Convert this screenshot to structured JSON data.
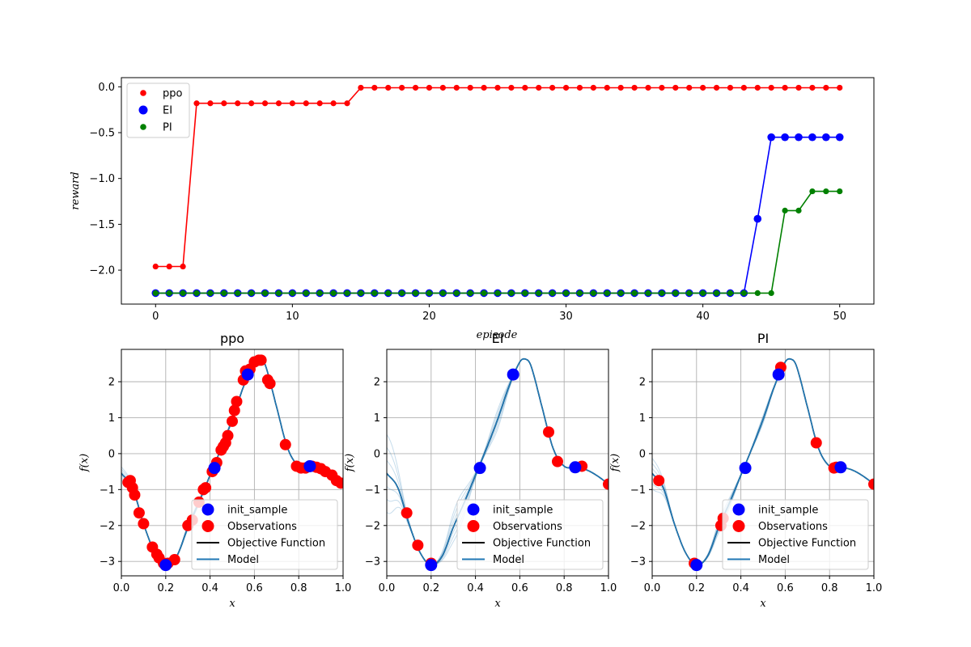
{
  "chart_data": [
    {
      "type": "line",
      "title": "",
      "xlabel": "episode",
      "ylabel": "reward",
      "xlim": [
        -2.5,
        52.5
      ],
      "ylim": [
        -2.37,
        0.1
      ],
      "xticks": [
        0,
        10,
        20,
        30,
        40,
        50
      ],
      "yticks": [
        0.0,
        -0.5,
        -1.0,
        -1.5,
        -2.0
      ],
      "ytick_labels": [
        "0.0",
        "−0.5",
        "−1.0",
        "−1.5",
        "−2.0"
      ],
      "grid": false,
      "legend_position": "upper-left",
      "series": [
        {
          "name": "ppo",
          "color": "#ff0000",
          "marker_size": "small",
          "x": [
            0,
            1,
            2,
            3,
            4,
            5,
            6,
            7,
            8,
            9,
            10,
            11,
            12,
            13,
            14,
            15,
            16,
            17,
            18,
            19,
            20,
            21,
            22,
            23,
            24,
            25,
            26,
            27,
            28,
            29,
            30,
            31,
            32,
            33,
            34,
            35,
            36,
            37,
            38,
            39,
            40,
            41,
            42,
            43,
            44,
            45,
            46,
            47,
            48,
            49,
            50
          ],
          "values": [
            -1.96,
            -1.96,
            -1.96,
            -0.18,
            -0.18,
            -0.18,
            -0.18,
            -0.18,
            -0.18,
            -0.18,
            -0.18,
            -0.18,
            -0.18,
            -0.18,
            -0.18,
            -0.01,
            -0.01,
            -0.01,
            -0.01,
            -0.01,
            -0.01,
            -0.01,
            -0.01,
            -0.01,
            -0.01,
            -0.01,
            -0.01,
            -0.01,
            -0.01,
            -0.01,
            -0.01,
            -0.01,
            -0.01,
            -0.01,
            -0.01,
            -0.01,
            -0.01,
            -0.01,
            -0.01,
            -0.01,
            -0.01,
            -0.01,
            -0.01,
            -0.01,
            -0.01,
            -0.01,
            -0.01,
            -0.01,
            -0.01,
            -0.01,
            -0.01
          ]
        },
        {
          "name": "EI",
          "color": "#0000ff",
          "marker_size": "large",
          "x": [
            0,
            1,
            2,
            3,
            4,
            5,
            6,
            7,
            8,
            9,
            10,
            11,
            12,
            13,
            14,
            15,
            16,
            17,
            18,
            19,
            20,
            21,
            22,
            23,
            24,
            25,
            26,
            27,
            28,
            29,
            30,
            31,
            32,
            33,
            34,
            35,
            36,
            37,
            38,
            39,
            40,
            41,
            42,
            43,
            44,
            45,
            46,
            47,
            48,
            49,
            50
          ],
          "values": [
            -2.25,
            -2.25,
            -2.25,
            -2.25,
            -2.25,
            -2.25,
            -2.25,
            -2.25,
            -2.25,
            -2.25,
            -2.25,
            -2.25,
            -2.25,
            -2.25,
            -2.25,
            -2.25,
            -2.25,
            -2.25,
            -2.25,
            -2.25,
            -2.25,
            -2.25,
            -2.25,
            -2.25,
            -2.25,
            -2.25,
            -2.25,
            -2.25,
            -2.25,
            -2.25,
            -2.25,
            -2.25,
            -2.25,
            -2.25,
            -2.25,
            -2.25,
            -2.25,
            -2.25,
            -2.25,
            -2.25,
            -2.25,
            -2.25,
            -2.25,
            -2.25,
            -1.44,
            -0.55,
            -0.55,
            -0.55,
            -0.55,
            -0.55,
            -0.55
          ]
        },
        {
          "name": "PI",
          "color": "#008000",
          "marker_size": "small",
          "x": [
            0,
            1,
            2,
            3,
            4,
            5,
            6,
            7,
            8,
            9,
            10,
            11,
            12,
            13,
            14,
            15,
            16,
            17,
            18,
            19,
            20,
            21,
            22,
            23,
            24,
            25,
            26,
            27,
            28,
            29,
            30,
            31,
            32,
            33,
            34,
            35,
            36,
            37,
            38,
            39,
            40,
            41,
            42,
            43,
            44,
            45,
            46,
            47,
            48,
            49,
            50
          ],
          "values": [
            -2.25,
            -2.25,
            -2.25,
            -2.25,
            -2.25,
            -2.25,
            -2.25,
            -2.25,
            -2.25,
            -2.25,
            -2.25,
            -2.25,
            -2.25,
            -2.25,
            -2.25,
            -2.25,
            -2.25,
            -2.25,
            -2.25,
            -2.25,
            -2.25,
            -2.25,
            -2.25,
            -2.25,
            -2.25,
            -2.25,
            -2.25,
            -2.25,
            -2.25,
            -2.25,
            -2.25,
            -2.25,
            -2.25,
            -2.25,
            -2.25,
            -2.25,
            -2.25,
            -2.25,
            -2.25,
            -2.25,
            -2.25,
            -2.25,
            -2.25,
            -2.25,
            -2.25,
            -2.25,
            -1.35,
            -1.35,
            -1.14,
            -1.14,
            -1.14
          ]
        }
      ]
    },
    {
      "type": "line",
      "title": "ppo",
      "xlabel": "x",
      "ylabel": "f(x)",
      "xlim": [
        0,
        1
      ],
      "ylim": [
        -3.4,
        2.9
      ],
      "xticks": [
        0.0,
        0.2,
        0.4,
        0.6,
        0.8,
        1.0
      ],
      "xtick_labels": [
        "0.0",
        "0.2",
        "0.4",
        "0.6",
        "0.8",
        "1.0"
      ],
      "yticks": [
        2,
        1,
        0,
        -1,
        -2,
        -3
      ],
      "ytick_labels": [
        "2",
        "1",
        "0",
        "−1",
        "−2",
        "−3"
      ],
      "grid": true,
      "legend_position": "lower-right",
      "legend": [
        "init_sample",
        "Observations",
        "Objective Function",
        "Model"
      ],
      "model_uncertainty": "narrow",
      "init_sample": {
        "x": [
          0.2,
          0.42,
          0.57,
          0.85
        ],
        "y": [
          -3.1,
          -0.4,
          2.2,
          -0.35
        ]
      },
      "observations": {
        "x": [
          0.03,
          0.04,
          0.05,
          0.06,
          0.08,
          0.1,
          0.14,
          0.16,
          0.17,
          0.19,
          0.21,
          0.24,
          0.3,
          0.32,
          0.35,
          0.37,
          0.38,
          0.41,
          0.43,
          0.45,
          0.46,
          0.47,
          0.48,
          0.5,
          0.51,
          0.52,
          0.55,
          0.56,
          0.58,
          0.6,
          0.62,
          0.63,
          0.66,
          0.67,
          0.74,
          0.79,
          0.81,
          0.83,
          0.86,
          0.88,
          0.9,
          0.92,
          0.95,
          0.97,
          0.99
        ],
        "y": [
          -0.8,
          -0.75,
          -0.95,
          -1.15,
          -1.65,
          -1.95,
          -2.6,
          -2.8,
          -2.9,
          -3.05,
          -3.05,
          -2.95,
          -2.0,
          -1.85,
          -1.35,
          -1.0,
          -0.95,
          -0.5,
          -0.25,
          0.1,
          0.2,
          0.3,
          0.5,
          0.9,
          1.2,
          1.45,
          2.05,
          2.3,
          2.35,
          2.55,
          2.6,
          2.6,
          2.05,
          1.95,
          0.25,
          -0.35,
          -0.4,
          -0.4,
          -0.35,
          -0.38,
          -0.42,
          -0.5,
          -0.6,
          -0.75,
          -0.82
        ]
      }
    },
    {
      "type": "line",
      "title": "EI",
      "xlabel": "x",
      "ylabel": "f(x)",
      "xlim": [
        0,
        1
      ],
      "ylim": [
        -3.4,
        2.9
      ],
      "xticks": [
        0.0,
        0.2,
        0.4,
        0.6,
        0.8,
        1.0
      ],
      "xtick_labels": [
        "0.0",
        "0.2",
        "0.4",
        "0.6",
        "0.8",
        "1.0"
      ],
      "yticks": [
        2,
        1,
        0,
        -1,
        -2,
        -3
      ],
      "ytick_labels": [
        "2",
        "1",
        "0",
        "−1",
        "−2",
        "−3"
      ],
      "grid": true,
      "legend_position": "lower-right",
      "legend": [
        "init_sample",
        "Observations",
        "Objective Function",
        "Model"
      ],
      "model_uncertainty": "wide",
      "init_sample": {
        "x": [
          0.2,
          0.42,
          0.57,
          0.85
        ],
        "y": [
          -3.1,
          -0.4,
          2.2,
          -0.38
        ]
      },
      "observations": {
        "x": [
          0.09,
          0.14,
          0.2,
          0.73,
          0.77,
          0.88,
          1.0
        ],
        "y": [
          -1.65,
          -2.55,
          -3.05,
          0.6,
          -0.22,
          -0.35,
          -0.85
        ]
      }
    },
    {
      "type": "line",
      "title": "PI",
      "xlabel": "x",
      "ylabel": "f(x)",
      "xlim": [
        0,
        1
      ],
      "ylim": [
        -3.4,
        2.9
      ],
      "xticks": [
        0.0,
        0.2,
        0.4,
        0.6,
        0.8,
        1.0
      ],
      "xtick_labels": [
        "0.0",
        "0.2",
        "0.4",
        "0.6",
        "0.8",
        "1.0"
      ],
      "yticks": [
        2,
        1,
        0,
        -1,
        -2,
        -3
      ],
      "ytick_labels": [
        "2",
        "1",
        "0",
        "−1",
        "−2",
        "−3"
      ],
      "grid": true,
      "legend_position": "lower-right",
      "legend": [
        "init_sample",
        "Observations",
        "Objective Function",
        "Model"
      ],
      "model_uncertainty": "medium",
      "init_sample": {
        "x": [
          0.2,
          0.42,
          0.57,
          0.85
        ],
        "y": [
          -3.1,
          -0.4,
          2.2,
          -0.38
        ]
      },
      "observations": {
        "x": [
          0.03,
          0.19,
          0.31,
          0.32,
          0.58,
          0.74,
          0.82,
          0.83,
          1.0
        ],
        "y": [
          -0.75,
          -3.05,
          -2.0,
          -1.8,
          2.4,
          0.3,
          -0.4,
          -0.38,
          -0.85
        ]
      }
    }
  ],
  "colors": {
    "init_sample": "#0000ff",
    "observations": "#ff0000",
    "objective": "#000000",
    "model": "#1f77b4",
    "grid": "#b0b0b0"
  }
}
